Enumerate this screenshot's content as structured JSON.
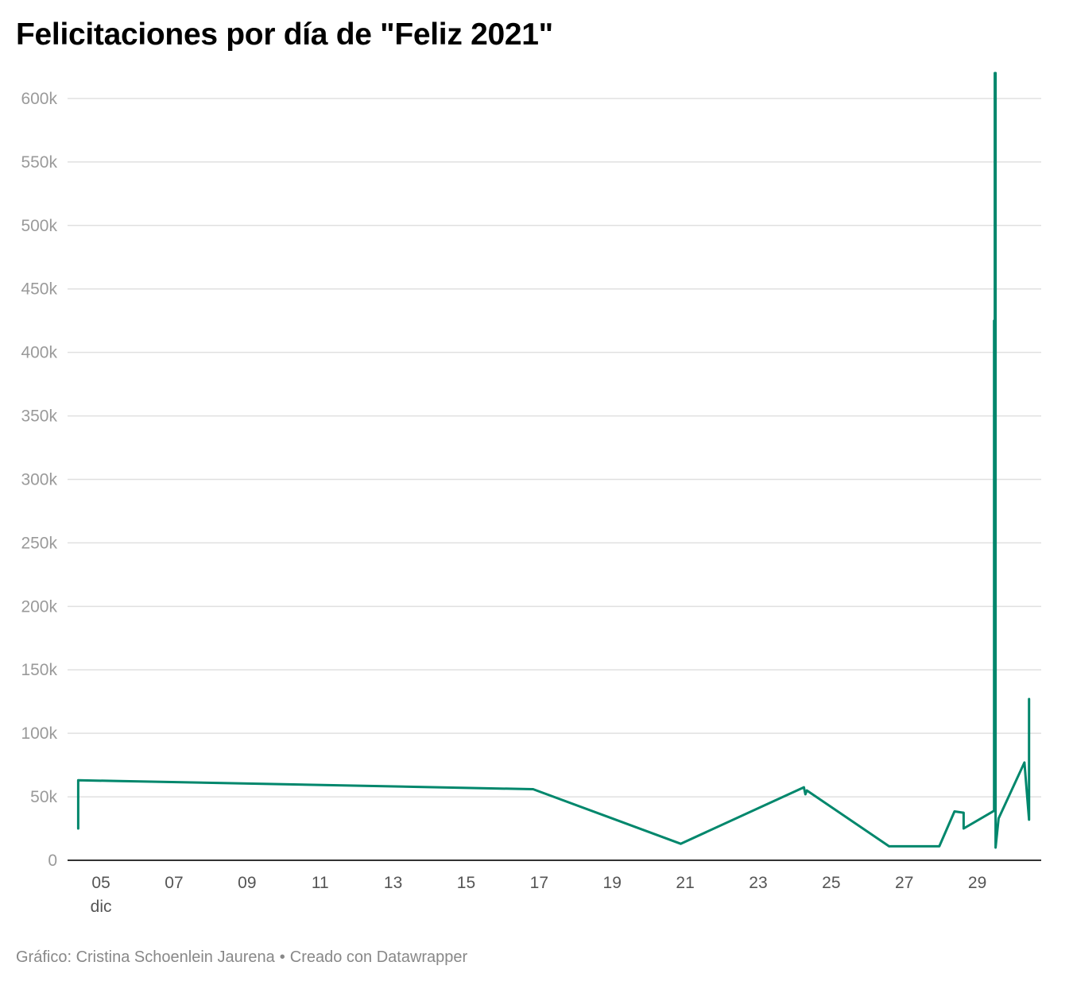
{
  "title": "Felicitaciones por día de \"Feliz 2021\"",
  "footer": {
    "credit": "Gráfico: Cristina Schoenlein Jaurena",
    "separator": "•",
    "tool": "Creado con Datawrapper"
  },
  "chart_data": {
    "type": "line",
    "title": "Felicitaciones por día de \"Feliz 2021\"",
    "xlabel": "",
    "ylabel": "",
    "series_color": "#00876c",
    "grid": true,
    "ylim": [
      0,
      620000
    ],
    "yticks": [
      0,
      50000,
      100000,
      150000,
      200000,
      250000,
      300000,
      350000,
      400000,
      450000,
      500000,
      550000,
      600000
    ],
    "ytick_labels": [
      "0",
      "50k",
      "100k",
      "150k",
      "200k",
      "250k",
      "300k",
      "350k",
      "400k",
      "450k",
      "500k",
      "550k",
      "600k"
    ],
    "xlim": [
      "2020-12-04T02:00",
      "2020-12-30T18:00"
    ],
    "xticks": [
      "2020-12-05",
      "2020-12-07",
      "2020-12-09",
      "2020-12-11",
      "2020-12-13",
      "2020-12-15",
      "2020-12-17",
      "2020-12-19",
      "2020-12-21",
      "2020-12-23",
      "2020-12-25",
      "2020-12-27",
      "2020-12-29"
    ],
    "xtick_labels": [
      "05",
      "07",
      "09",
      "11",
      "13",
      "15",
      "17",
      "19",
      "21",
      "23",
      "25",
      "27",
      "29"
    ],
    "xtick_sublabel": "dic",
    "series": [
      {
        "x": [
          "2020-12-04T09:00",
          "2020-12-04T09:00",
          "2020-12-05T09:00",
          "2020-12-16T20:00",
          "2020-12-20T21:00",
          "2020-12-24T06:00",
          "2020-12-24T07:00",
          "2020-12-24T08:00",
          "2020-12-26T14:00",
          "2020-12-27T23:00",
          "2020-12-28T09:00",
          "2020-12-28T15:00",
          "2020-12-28T15:00",
          "2020-12-29T11:00",
          "2020-12-29T11:00",
          "2020-12-29T11:30",
          "2020-12-29T11:30",
          "2020-12-29T12:00",
          "2020-12-29T12:00",
          "2020-12-29T14:00",
          "2020-12-30T07:00",
          "2020-12-30T10:00",
          "2020-12-30T10:00"
        ],
        "y": [
          25000,
          63000,
          62500,
          56000,
          13000,
          57500,
          52000,
          55000,
          11000,
          11000,
          38500,
          37500,
          25000,
          39000,
          425000,
          425000,
          620000,
          620000,
          10000,
          33000,
          77000,
          32000,
          127000
        ]
      }
    ]
  }
}
